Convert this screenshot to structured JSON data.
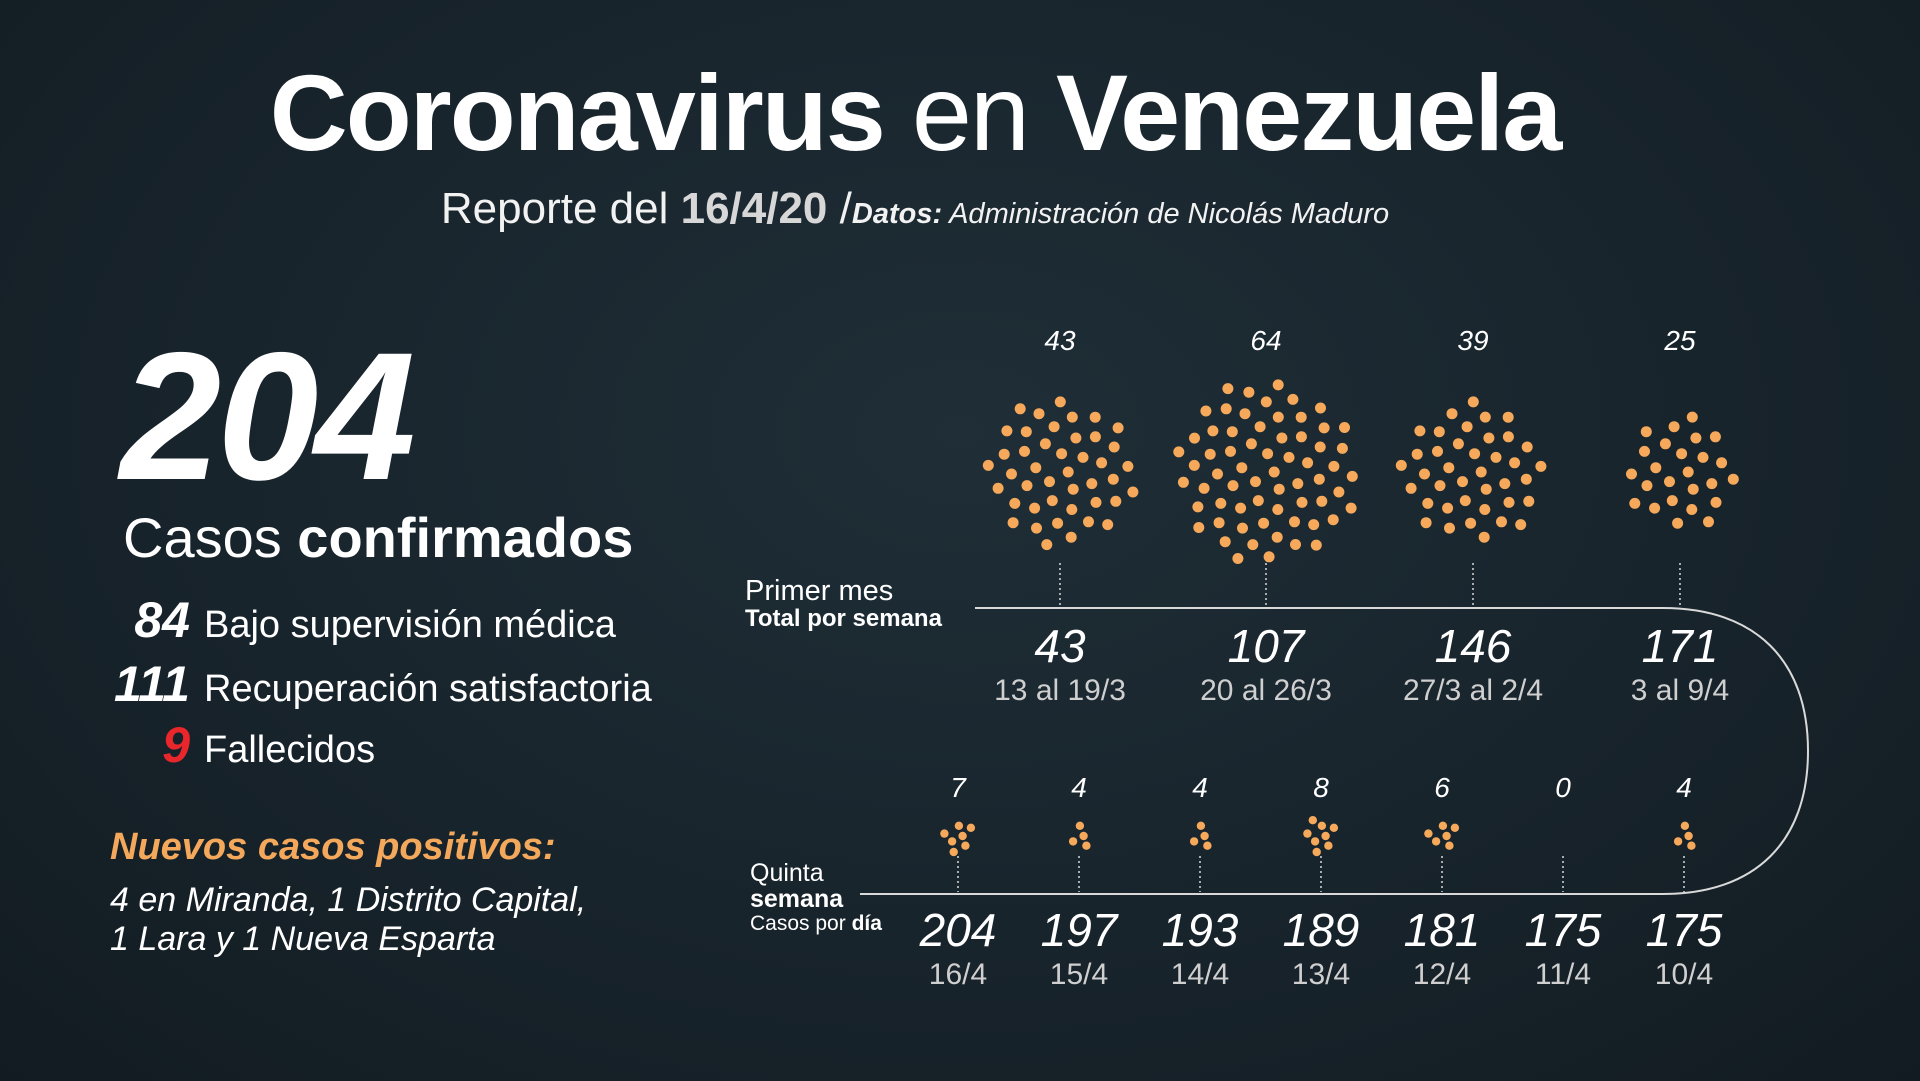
{
  "header": {
    "title_bold_1": "Coronavirus",
    "title_light": "en",
    "title_bold_2": "Venezuela",
    "subtitle_prefix": "Reporte del",
    "subtitle_date": "16/4/20",
    "subtitle_sep": "/",
    "source_label": "Datos:",
    "source_value": "Administración de Nicolás Maduro"
  },
  "summary": {
    "total": "204",
    "total_label_light": "Casos",
    "total_label_bold": "confirmados",
    "stats": [
      {
        "value": "84",
        "label": "Bajo supervisión médica"
      },
      {
        "value": "111",
        "label": "Recuperación satisfactoria"
      },
      {
        "value": "9",
        "label": "Fallecidos"
      }
    ],
    "stat_colors": {
      "fallecidos": "#e8262b"
    }
  },
  "new_cases": {
    "title": "Nuevos casos positivos:",
    "lines": [
      "4 en Miranda, 1 Distrito Capital,",
      "1 Lara y 1 Nueva Esparta"
    ]
  },
  "row_labels": {
    "month_l1": "Primer mes",
    "month_l2": "Total por semana",
    "week_l1": "Quinta",
    "week_l2": "semana",
    "week_l3_light": "Casos por",
    "week_l3_bold": "día"
  },
  "chart_data": [
    {
      "type": "scatter",
      "name_row": "Primer mes",
      "categories": [
        "13 al 19/3",
        "20 al 26/3",
        "27/3 al 2/4",
        "3 al 9/4"
      ],
      "new_cases": [
        43,
        64,
        39,
        25
      ],
      "cumulative": [
        43,
        107,
        146,
        171
      ]
    },
    {
      "type": "scatter",
      "name_row": "Quinta semana",
      "categories": [
        "16/4",
        "15/4",
        "14/4",
        "13/4",
        "12/4",
        "11/4",
        "10/4"
      ],
      "new_cases": [
        7,
        4,
        4,
        8,
        6,
        0,
        4
      ],
      "cumulative": [
        204,
        197,
        193,
        189,
        181,
        175,
        175
      ]
    }
  ],
  "colors": {
    "dot": "#f6a95b",
    "line": "#d9d9d9",
    "text": "#ffffff",
    "muted": "#cfcfcf",
    "accent": "#f3a85b"
  }
}
